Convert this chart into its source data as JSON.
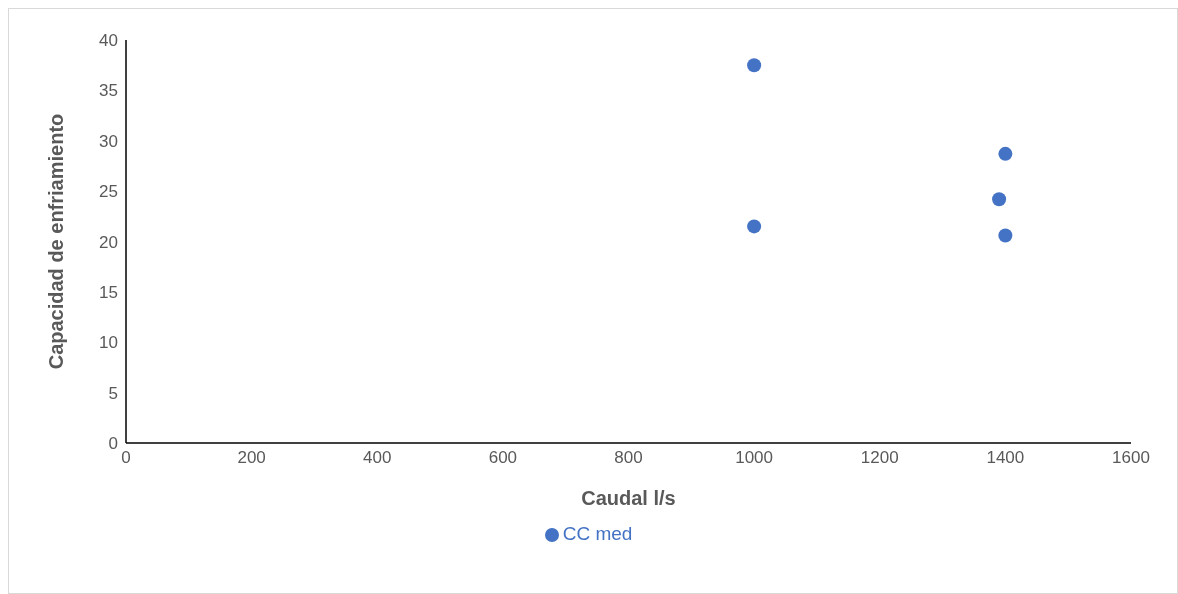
{
  "chart_data": {
    "type": "scatter",
    "xlabel": "Caudal l/s",
    "ylabel": "Capacidad de enfriamiento",
    "series": [
      {
        "name": "CC med",
        "color": "#4472c4",
        "x": [
          1000,
          1000,
          1400,
          1390,
          1400
        ],
        "values": [
          37.5,
          21.5,
          28.7,
          24.2,
          20.6
        ]
      }
    ],
    "xlim": [
      0,
      1600
    ],
    "xticks": [
      0,
      200,
      400,
      600,
      800,
      1000,
      1200,
      1400,
      1600
    ],
    "ylim": [
      0,
      40
    ],
    "yticks": [
      0,
      5,
      10,
      15,
      20,
      25,
      30,
      35,
      40
    ],
    "legend": "bottom",
    "marker": "circle"
  }
}
